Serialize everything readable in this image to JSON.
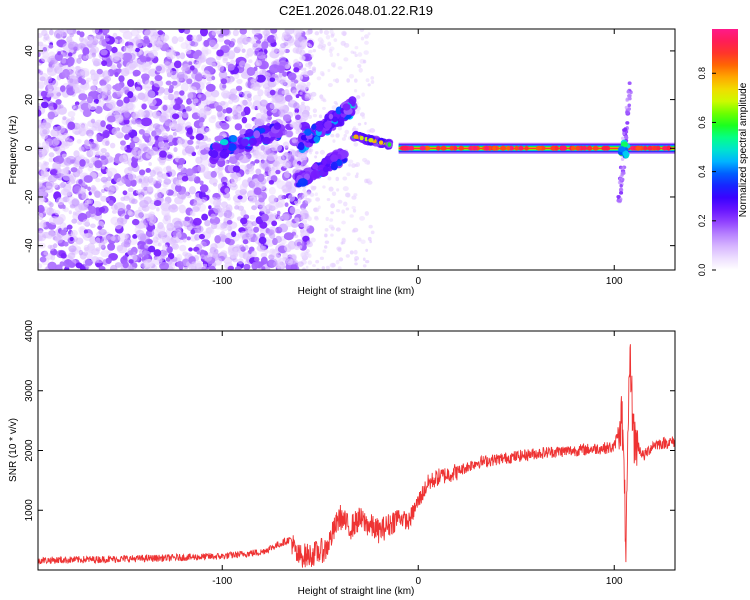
{
  "figure_title": "C2E1.2026.048.01.22.R19",
  "chart_data": [
    {
      "type": "heatmap",
      "title": "C2E1.2026.048.01.22.R19",
      "xlabel": "Height of straight line (km)",
      "ylabel": "Frequency (Hz)",
      "xlim": [
        -194,
        131
      ],
      "ylim": [
        -50,
        49
      ],
      "xticks": [
        -100,
        0,
        100
      ],
      "yticks": [
        -40,
        -20,
        0,
        20,
        40
      ],
      "colorbar": {
        "label": "Normalized spectral amplitude",
        "range": [
          0,
          0.98
        ],
        "ticks": [
          0.0,
          0.2,
          0.4,
          0.6,
          0.8
        ],
        "tick_labels": [
          "0.0",
          "0.2",
          "0.4",
          "0.6",
          "0.8"
        ],
        "colormap": [
          "#ffffff",
          "#e4ccff",
          "#b47cff",
          "#7a1cff",
          "#3300ff",
          "#0044ff",
          "#00c8ff",
          "#00ff9c",
          "#22ff00",
          "#c8ff00",
          "#ffd000",
          "#ff6a00",
          "#ff1e3c",
          "#ff1a8a"
        ]
      },
      "features": {
        "noise_region_x": [
          -194,
          -63
        ],
        "main_line": {
          "x": [
            -10,
            131
          ],
          "frequency": 0,
          "amplitude": 0.9
        },
        "rising_streak": {
          "x": [
            -105,
            -70
          ],
          "frequency": [
            -2,
            8
          ],
          "amplitude": 0.45
        },
        "upper_streak": {
          "x": [
            -60,
            -33
          ],
          "frequency": [
            2,
            17
          ],
          "amplitude": 0.45
        },
        "lower_streak": {
          "x": [
            -62,
            -38
          ],
          "frequency": [
            -14,
            -3
          ],
          "amplitude": 0.4
        },
        "step_segment": {
          "x": [
            -33,
            -12
          ],
          "frequency": [
            5,
            1
          ],
          "amplitude": 0.7
        },
        "disturbance": {
          "x": 105,
          "frequency": [
            -22,
            27
          ]
        }
      }
    },
    {
      "type": "line",
      "xlabel": "Height of straight line (km)",
      "ylabel": "SNR (10 * v/v)",
      "xlim": [
        -194,
        131
      ],
      "ylim": [
        0,
        4000
      ],
      "xticks": [
        -100,
        0,
        100
      ],
      "yticks": [
        1000,
        2000,
        3000,
        4000
      ],
      "series": [
        {
          "name": "SNR",
          "color": "#ee3333",
          "x": [
            -194,
            -160,
            -130,
            -100,
            -80,
            -65,
            -62,
            -55,
            -47,
            -40,
            -35,
            -30,
            -20,
            -15,
            -10,
            -5,
            0,
            5,
            10,
            20,
            30,
            40,
            50,
            60,
            70,
            80,
            90,
            100,
            104,
            106,
            108,
            110,
            115,
            120,
            131
          ],
          "values": [
            160,
            180,
            200,
            230,
            300,
            520,
            230,
            250,
            350,
            900,
            700,
            850,
            650,
            750,
            900,
            800,
            1150,
            1450,
            1550,
            1650,
            1800,
            1850,
            1900,
            1950,
            1980,
            2000,
            2030,
            2050,
            2600,
            400,
            3600,
            2200,
            1900,
            2100,
            2150
          ]
        }
      ]
    }
  ]
}
